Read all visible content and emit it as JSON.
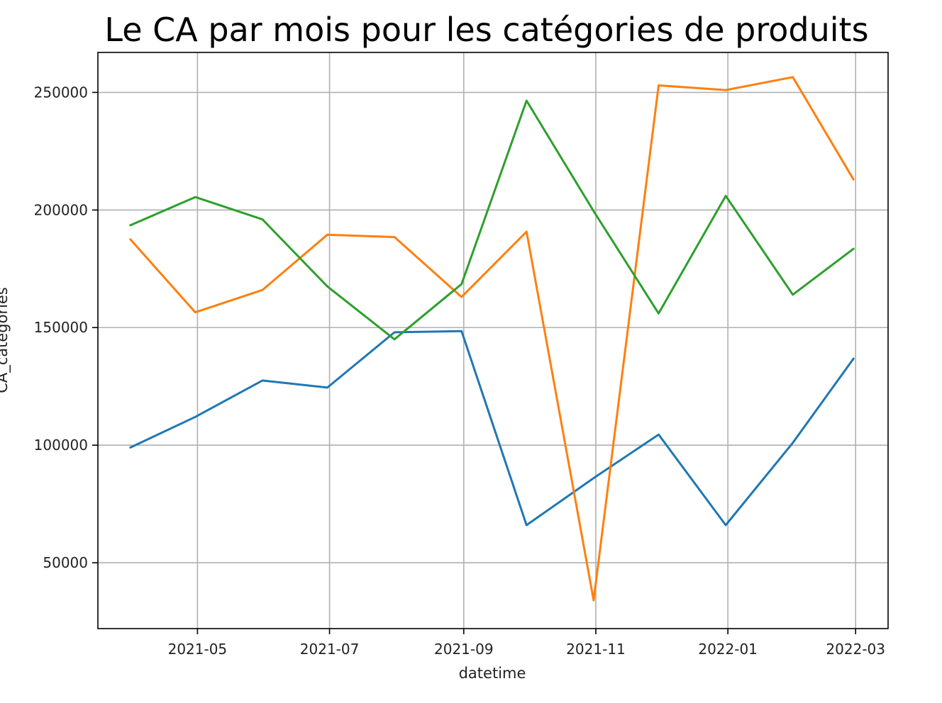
{
  "chart_data": {
    "type": "line",
    "title": "Le CA par mois pour les catégories de produits",
    "xlabel": "datetime",
    "ylabel": "CA_categories",
    "x": [
      "2021-03-31",
      "2021-04-30",
      "2021-05-31",
      "2021-06-30",
      "2021-07-31",
      "2021-08-31",
      "2021-09-30",
      "2021-10-31",
      "2021-11-30",
      "2021-12-31",
      "2022-01-31",
      "2022-02-28"
    ],
    "x_ticks": [
      "2021-05",
      "2021-07",
      "2021-09",
      "2021-11",
      "2022-01",
      "2022-03"
    ],
    "y_ticks": [
      50000,
      100000,
      150000,
      200000,
      250000
    ],
    "y_tick_labels": [
      "50000",
      "100000",
      "150000",
      "200000",
      "250000"
    ],
    "xlim": [
      "2021-03-16",
      "2022-03-16"
    ],
    "ylim": [
      22000,
      267000
    ],
    "grid": true,
    "series": [
      {
        "color": "#1f77b4",
        "values": [
          99000,
          112000,
          127500,
          124500,
          148000,
          148500,
          66000,
          86000,
          104500,
          66000,
          101000,
          136800
        ]
      },
      {
        "color": "#ff7f0e",
        "values": [
          187500,
          156500,
          166000,
          189500,
          188500,
          163000,
          190800,
          34000,
          253000,
          251000,
          256500,
          213000
        ]
      },
      {
        "color": "#2ca02c",
        "values": [
          193500,
          205500,
          196000,
          167500,
          145000,
          168500,
          246500,
          199500,
          156000,
          206000,
          164000,
          183500
        ]
      }
    ]
  }
}
